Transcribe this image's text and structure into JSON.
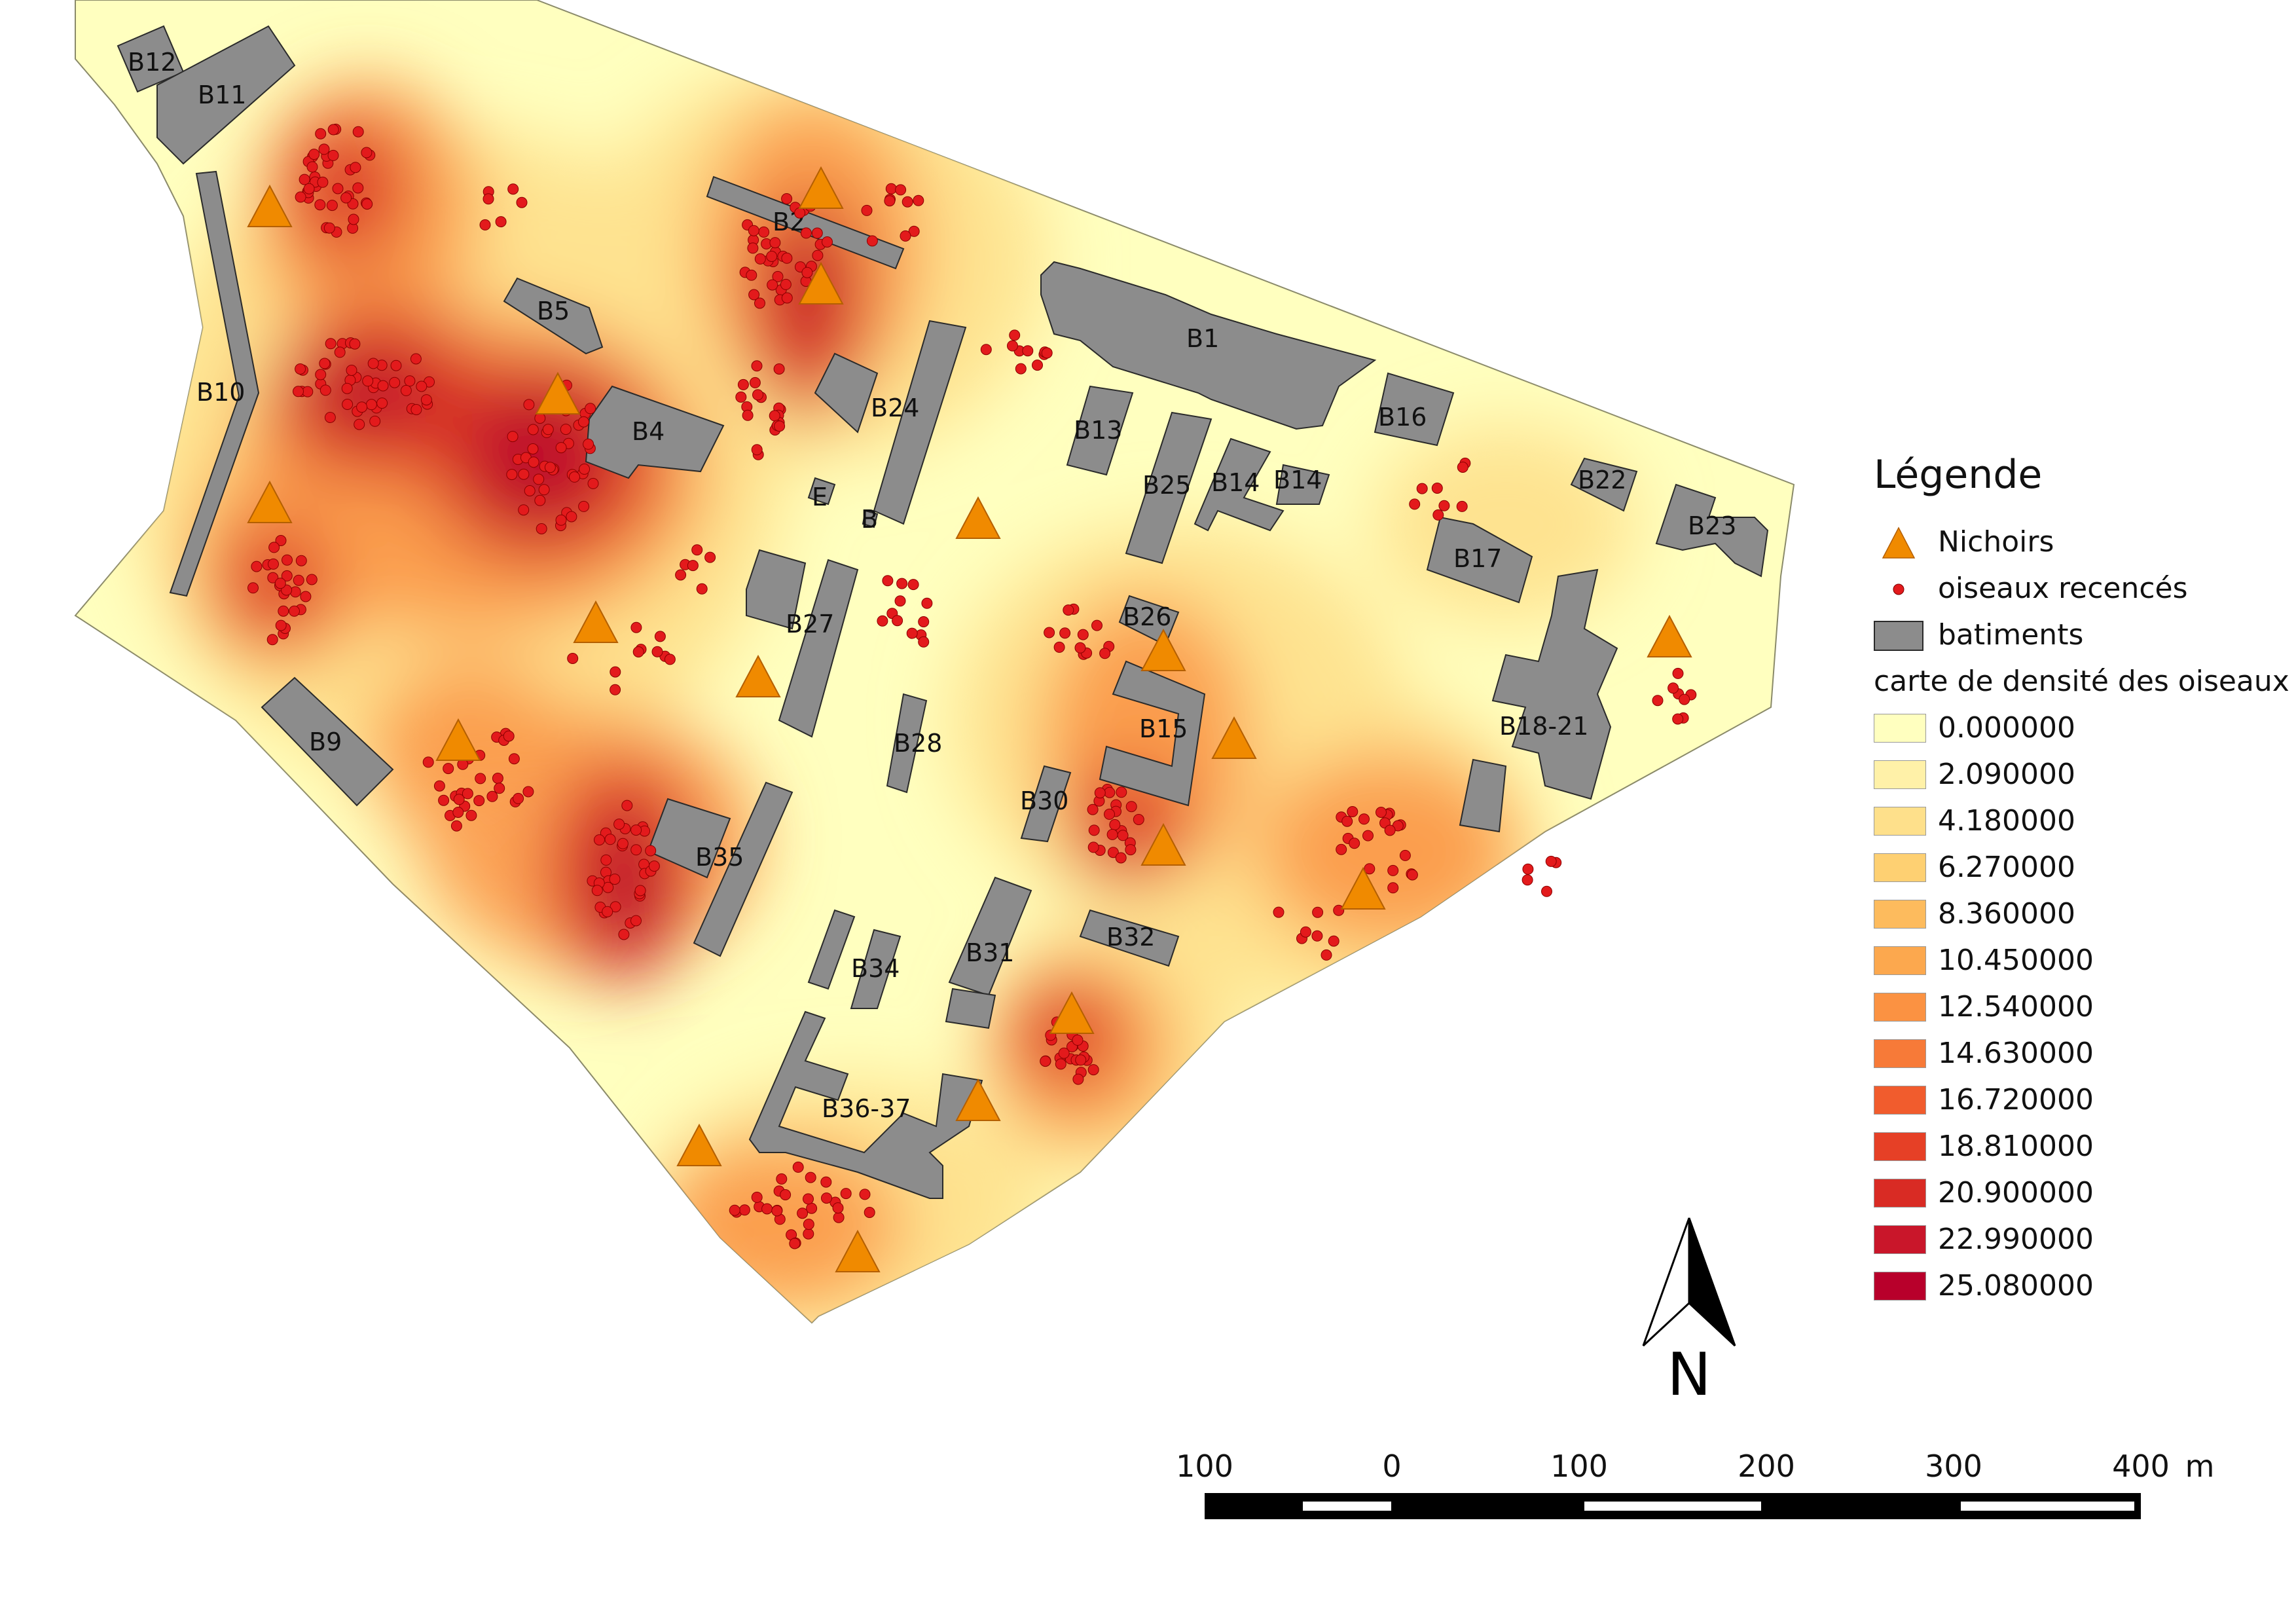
{
  "legend": {
    "title": "Légende",
    "items": [
      {
        "label": "Nichoirs",
        "icon": "orange-triangle-icon",
        "color": "#f08a00"
      },
      {
        "label": "oiseaux recencés",
        "icon": "red-dot-icon",
        "color": "#e31a1c"
      },
      {
        "label": "batiments",
        "icon": "gray-rect-icon",
        "color": "#8c8c8c"
      }
    ],
    "density_title": "carte de densité des oiseaux",
    "density_classes": [
      {
        "label": "0.000000",
        "color": "#ffffbf"
      },
      {
        "label": "2.090000",
        "color": "#fff1a8"
      },
      {
        "label": "4.180000",
        "color": "#fee08b"
      },
      {
        "label": "6.270000",
        "color": "#fed072"
      },
      {
        "label": "8.360000",
        "color": "#fdbb5d"
      },
      {
        "label": "10.450000",
        "color": "#fca84e"
      },
      {
        "label": "12.540000",
        "color": "#fb9242"
      },
      {
        "label": "14.630000",
        "color": "#f77a38"
      },
      {
        "label": "16.720000",
        "color": "#f15c2d"
      },
      {
        "label": "18.810000",
        "color": "#e64026"
      },
      {
        "label": "20.900000",
        "color": "#d92b24"
      },
      {
        "label": "22.990000",
        "color": "#c9162a"
      },
      {
        "label": "25.080000",
        "color": "#b8002b"
      }
    ]
  },
  "buildings": [
    {
      "id": "B12",
      "label": "B12"
    },
    {
      "id": "B11",
      "label": "B11"
    },
    {
      "id": "B10",
      "label": "B10"
    },
    {
      "id": "B2",
      "label": "B2"
    },
    {
      "id": "B5",
      "label": "B5"
    },
    {
      "id": "B4",
      "label": "B4"
    },
    {
      "id": "B24",
      "label": "B24"
    },
    {
      "id": "B1",
      "label": "B1"
    },
    {
      "id": "B13",
      "label": "B13"
    },
    {
      "id": "B16",
      "label": "B16"
    },
    {
      "id": "B25",
      "label": "B25"
    },
    {
      "id": "B14",
      "label": "B14"
    },
    {
      "id": "B14b",
      "label": "B14"
    },
    {
      "id": "B22",
      "label": "B22"
    },
    {
      "id": "B23",
      "label": "B23"
    },
    {
      "id": "B17",
      "label": "B17"
    },
    {
      "id": "B27",
      "label": "B27"
    },
    {
      "id": "B26",
      "label": "B26"
    },
    {
      "id": "B15",
      "label": "B15"
    },
    {
      "id": "B28",
      "label": "B28"
    },
    {
      "id": "B18-21",
      "label": "B18-21"
    },
    {
      "id": "B9",
      "label": "B9"
    },
    {
      "id": "B30",
      "label": "B30"
    },
    {
      "id": "B35",
      "label": "B35"
    },
    {
      "id": "B32",
      "label": "B32"
    },
    {
      "id": "B34",
      "label": "B34"
    },
    {
      "id": "B31",
      "label": "B31"
    },
    {
      "id": "B36-37",
      "label": "B36-37"
    },
    {
      "id": "Bsmall1",
      "label": "E"
    },
    {
      "id": "Bsmall2",
      "label": "B"
    }
  ],
  "north_arrow": {
    "label": "N"
  },
  "scale_bar": {
    "ticks": [
      "100",
      "0",
      "100",
      "200",
      "300",
      "400"
    ],
    "unit": "m"
  }
}
